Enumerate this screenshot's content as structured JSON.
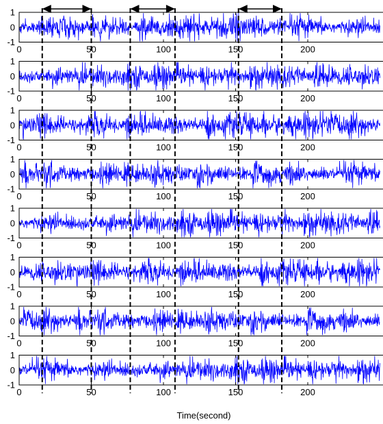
{
  "chart_data": {
    "type": "line",
    "panel_count": 8,
    "xlabel": "Time(second)",
    "ylabel": "",
    "xlim": [
      0,
      250
    ],
    "ylim": [
      -1,
      1
    ],
    "xticks": [
      0,
      50,
      100,
      150,
      200
    ],
    "xtick_labels": [
      "0",
      "50",
      "100",
      "150",
      "200"
    ],
    "yticks": [
      -1,
      0,
      1
    ],
    "ytick_labels": [
      "-1",
      "0",
      "1"
    ],
    "series_color": "#0000ff",
    "grid": false,
    "legend": false,
    "series_description": "dense noise-like signal per panel, amplitude mostly within ±0.6",
    "dashed_markers_x": [
      16,
      50,
      77,
      108,
      152,
      182
    ],
    "arrows": [
      {
        "from": 16,
        "to": 50
      },
      {
        "from": 77,
        "to": 108
      },
      {
        "from": 152,
        "to": 182
      }
    ]
  }
}
